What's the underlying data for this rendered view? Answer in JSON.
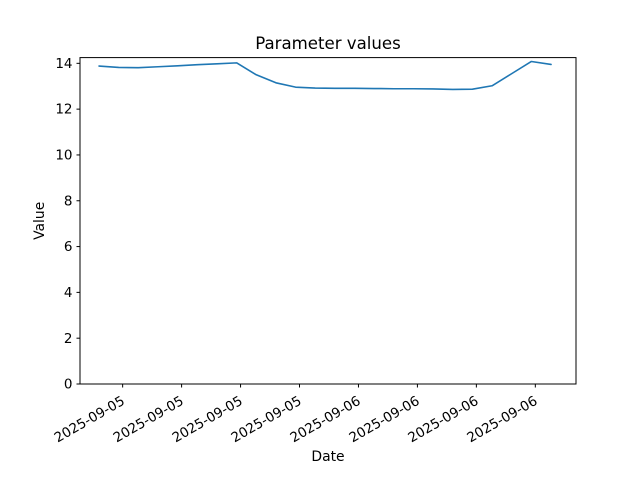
{
  "figure": {
    "background_color": "#ffffff",
    "frame_color": "#000000",
    "text_color": "#000000"
  },
  "chart_data": {
    "type": "line",
    "title": "Parameter values",
    "xlabel": "Date",
    "ylabel": "Value",
    "grid": false,
    "legend_position": "none",
    "ylim": [
      0,
      14.25
    ],
    "xlim_hours": [
      -4.34,
      46.14
    ],
    "y_ticks": [
      0,
      2,
      4,
      6,
      8,
      10,
      12,
      14
    ],
    "x_ticks": {
      "hours": [
        0,
        6,
        12,
        18,
        24,
        30,
        36,
        42
      ],
      "labels": [
        "2025-09-05",
        "2025-09-05",
        "2025-09-05",
        "2025-09-05",
        "2025-09-06",
        "2025-09-06",
        "2025-09-06",
        "2025-09-06"
      ]
    },
    "series": [
      {
        "name": "parameter-values-line",
        "color": "#1f77b4",
        "x_hours": [
          -2.4,
          -0.4,
          1.6,
          3.6,
          5.6,
          7.6,
          9.6,
          11.6,
          13.6,
          15.6,
          17.6,
          19.6,
          21.6,
          23.6,
          25.6,
          27.6,
          29.6,
          31.6,
          33.6,
          35.6,
          37.6,
          39.6,
          41.6,
          43.6
        ],
        "values": [
          13.88,
          13.82,
          13.81,
          13.85,
          13.89,
          13.94,
          13.98,
          14.02,
          13.5,
          13.15,
          12.96,
          12.92,
          12.91,
          12.91,
          12.9,
          12.89,
          12.89,
          12.88,
          12.86,
          12.87,
          13.02,
          13.55,
          14.08,
          13.95
        ]
      }
    ]
  }
}
